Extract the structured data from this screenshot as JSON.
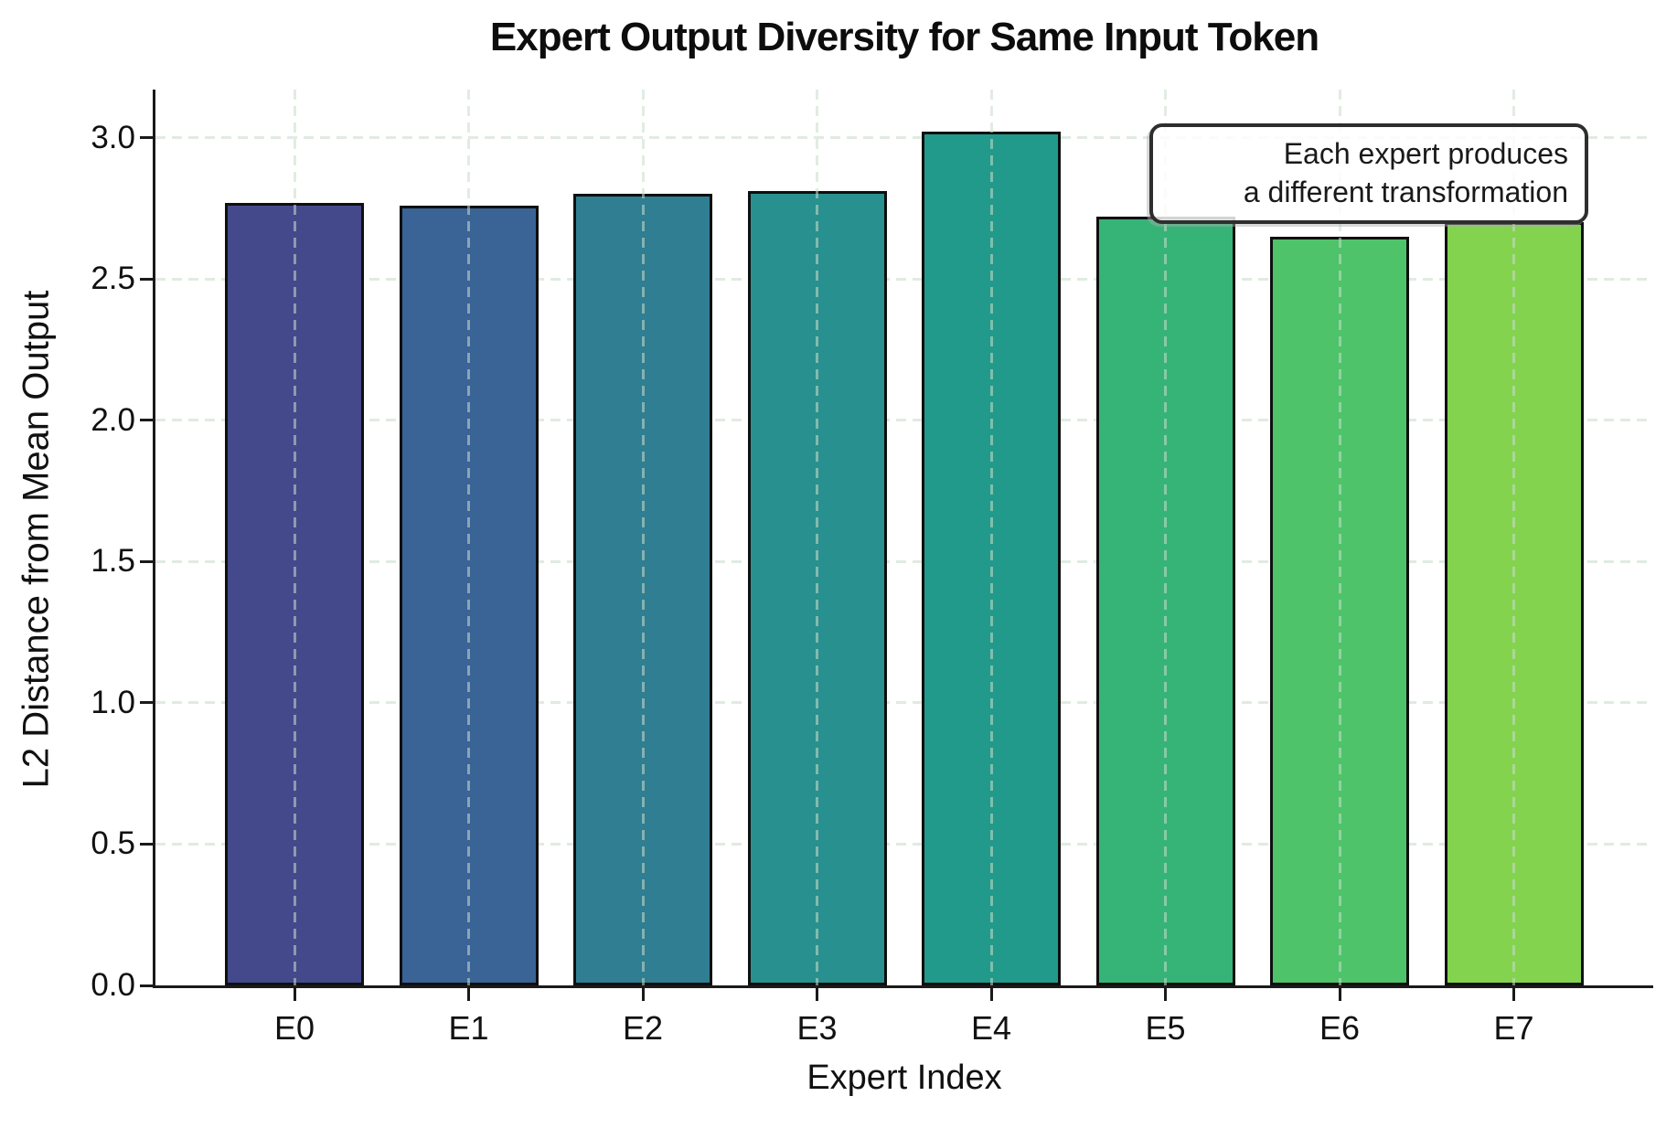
{
  "title": "Expert Output Diversity for Same Input Token",
  "chart_data": {
    "type": "bar",
    "title": "Expert Output Diversity for Same Input Token",
    "xlabel": "Expert Index",
    "ylabel": "L2 Distance from Mean Output",
    "categories": [
      "E0",
      "E1",
      "E2",
      "E3",
      "E4",
      "E5",
      "E6",
      "E7"
    ],
    "values": [
      2.77,
      2.76,
      2.8,
      2.81,
      3.02,
      2.72,
      2.65,
      2.7
    ],
    "bar_colors": [
      "#44498c",
      "#3a6396",
      "#2f7e92",
      "#28908e",
      "#229a8b",
      "#36b478",
      "#4ec36a",
      "#84d34f"
    ],
    "bar_edge_color": "#0f0f0f",
    "ylim": [
      0,
      3.17
    ],
    "yticks": [
      0.0,
      0.5,
      1.0,
      1.5,
      2.0,
      2.5,
      3.0
    ],
    "ytick_labels": [
      "0.0",
      "0.5",
      "1.0",
      "1.5",
      "2.0",
      "2.5",
      "3.0"
    ],
    "grid": true,
    "grid_style": "dashed",
    "grid_color": "#e1ebe1",
    "legend": null,
    "annotation": {
      "lines": [
        "Each expert produces",
        "a different transformation"
      ],
      "align": "right",
      "position": "top-right"
    }
  }
}
